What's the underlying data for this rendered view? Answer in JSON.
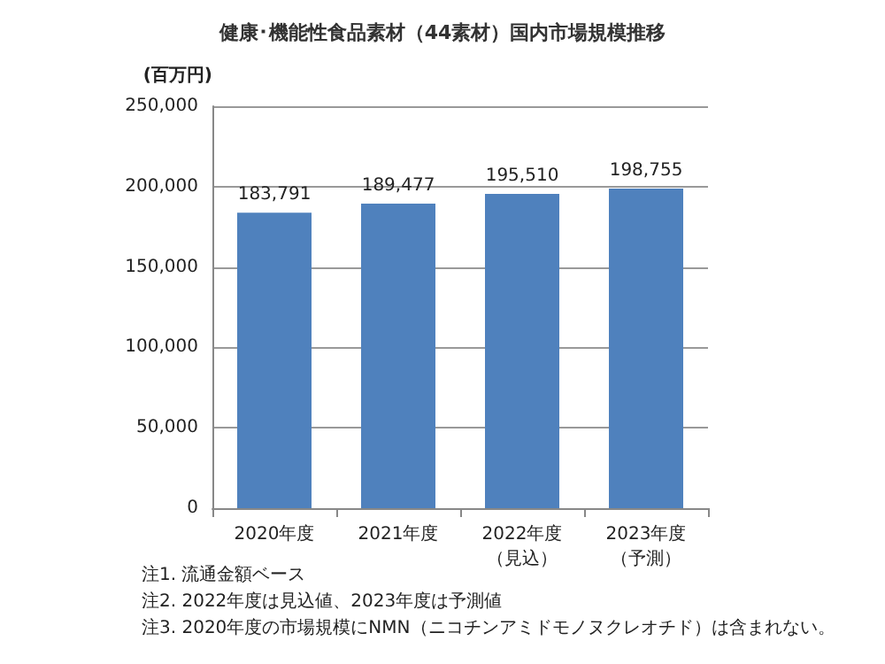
{
  "chart_data": {
    "type": "bar",
    "title": "健康･機能性食品素材（44素材）国内市場規模推移",
    "ylabel": "(百万円)",
    "categories": [
      "2020年度",
      "2021年度",
      "2022年度（見込）",
      "2023年度（予測）"
    ],
    "values": [
      183791,
      189477,
      195510,
      198755
    ],
    "value_labels": [
      "183,791",
      "189,477",
      "195,510",
      "198,755"
    ],
    "color": "#4f81bd",
    "ylim": [
      0,
      250000
    ],
    "yticks": [
      0,
      {
        "value": 50000,
        "label": "50,000"
      },
      {
        "value": 100000,
        "label": "100,000"
      },
      {
        "value": 150000,
        "label": "150,000"
      },
      {
        "value": 200000,
        "label": "200,000"
      },
      {
        "value": 250000,
        "label": "250,000"
      }
    ],
    "grid": "y",
    "annotations": [
      "注1. 流通金額ベース",
      "注2. 2022年度は見込値、2023年度は予測値",
      "注3. 2020年度の市場規模にNMN（ニコチンアミドモノヌクレオチド）は含まれない。"
    ]
  }
}
